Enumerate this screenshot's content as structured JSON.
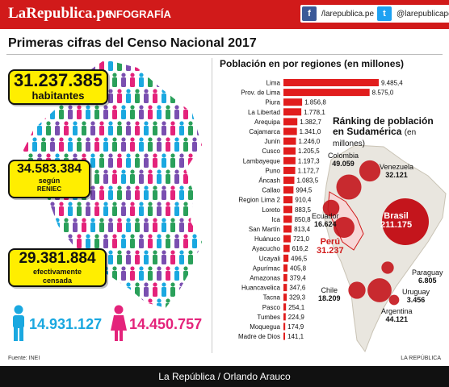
{
  "header": {
    "brand": "LaRepublica.pe",
    "separator": "|",
    "section": "INFOGRAFÍA",
    "facebook": "/larepublica.pe",
    "twitter": "@larepublicape",
    "colors": {
      "brand_red": "#d11a1a",
      "facebook": "#3b5998",
      "twitter": "#1da1f2"
    }
  },
  "title": "Primeras cifras del Censo Nacional 2017",
  "stats": {
    "total_value": "31.237.385",
    "total_label": "habitantes",
    "reniec_value": "34.583.384",
    "reniec_label1": "según",
    "reniec_label2": "RENIEC",
    "censada_value": "29.381.884",
    "censada_label1": "efectivamente",
    "censada_label2": "censada"
  },
  "genders": {
    "male": "14.931.127",
    "female": "14.450.757",
    "male_color": "#1aa8e0",
    "female_color": "#e4237b"
  },
  "chart_data": [
    {
      "type": "bar",
      "title": "Población en por regiones (en millones)",
      "orientation": "horizontal",
      "color": "#e11d1d",
      "categories": [
        "Lima",
        "Prov. de Lima",
        "Piura",
        "La Libertad",
        "Arequipa",
        "Cajamarca",
        "Junín",
        "Cusco",
        "Lambayeque",
        "Puno",
        "Áncash",
        "Callao",
        "Region Lima 2",
        "Loreto",
        "Ica",
        "San Martín",
        "Huánuco",
        "Ayacucho",
        "Ucayali",
        "Apurímac",
        "Amazonas",
        "Huancavelica",
        "Tacna",
        "Pasco",
        "Tumbes",
        "Moquegua",
        "Madre de Dios"
      ],
      "labels": [
        "9.485,4",
        "8.575,0",
        "1.856,8",
        "1.778,1",
        "1.382,7",
        "1.341,0",
        "1.246,0",
        "1.205,5",
        "1.197,3",
        "1.172,7",
        "1.083,5",
        "994,5",
        "910,4",
        "883,5",
        "850,8",
        "813,4",
        "721,0",
        "616,2",
        "496,5",
        "405,8",
        "379,4",
        "347,6",
        "329,3",
        "254,1",
        "224,9",
        "174,9",
        "141,1"
      ],
      "values": [
        9485.4,
        8575.0,
        1856.8,
        1778.1,
        1382.7,
        1341.0,
        1246.0,
        1205.5,
        1197.3,
        1172.7,
        1083.5,
        994.5,
        910.4,
        883.5,
        850.8,
        813.4,
        721.0,
        616.2,
        496.5,
        405.8,
        379.4,
        347.6,
        329.3,
        254.1,
        224.9,
        174.9,
        141.1
      ]
    },
    {
      "type": "bubble-map",
      "title": "Ránking de población en Sudamérica",
      "subtitle": "(en millones)",
      "countries": [
        {
          "name": "Colombia",
          "label": "49.059",
          "value": 49.059
        },
        {
          "name": "Venezuela",
          "label": "32.121",
          "value": 32.121
        },
        {
          "name": "Ecuador",
          "label": "16.624",
          "value": 16.624
        },
        {
          "name": "Brasil",
          "label": "211.175",
          "value": 211.175
        },
        {
          "name": "Perú",
          "label": "31.237",
          "value": 31.237
        },
        {
          "name": "Paraguay",
          "label": "6.805",
          "value": 6.805
        },
        {
          "name": "Uruguay",
          "label": "3.456",
          "value": 3.456
        },
        {
          "name": "Chile",
          "label": "18.209",
          "value": 18.209
        },
        {
          "name": "Argentina",
          "label": "44.121",
          "value": 44.121
        }
      ]
    }
  ],
  "source": "Fuente: INEI",
  "credit_small": "LA REPÚBLICA",
  "footer": "La República / Orlando Arauco"
}
